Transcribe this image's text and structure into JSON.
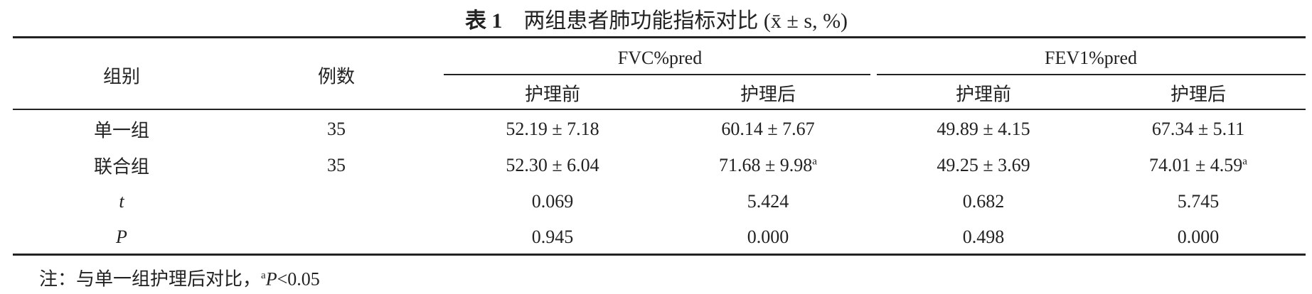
{
  "title": {
    "label": "表 1",
    "text": "两组患者肺功能指标对比 (x̄ ± s, %)"
  },
  "table": {
    "header": {
      "group": "组别",
      "count": "例数",
      "spans": [
        "FVC%pred",
        "FEV1%pred"
      ],
      "sub": [
        "护理前",
        "护理后",
        "护理前",
        "护理后"
      ]
    },
    "rows": [
      [
        {
          "text": "单一组"
        },
        {
          "text": "35"
        },
        {
          "text": "52.19 ± 7.18"
        },
        {
          "text": "60.14 ± 7.67"
        },
        {
          "text": "49.89 ± 4.15"
        },
        {
          "text": "67.34 ± 5.11"
        }
      ],
      [
        {
          "text": "联合组"
        },
        {
          "text": "35"
        },
        {
          "text": "52.30 ± 6.04"
        },
        {
          "text": "71.68 ± 9.98",
          "sup": "a"
        },
        {
          "text": "49.25 ± 3.69"
        },
        {
          "text": "74.01 ± 4.59",
          "sup": "a"
        }
      ],
      [
        {
          "text": "t",
          "italic": true
        },
        {
          "text": ""
        },
        {
          "text": "0.069"
        },
        {
          "text": "5.424"
        },
        {
          "text": "0.682"
        },
        {
          "text": "5.745"
        }
      ],
      [
        {
          "text": "P",
          "italic": true
        },
        {
          "text": ""
        },
        {
          "text": "0.945"
        },
        {
          "text": "0.000"
        },
        {
          "text": "0.498"
        },
        {
          "text": "0.000"
        }
      ]
    ]
  },
  "note": {
    "prefix": "注：与单一组护理后对比，",
    "sup": "a",
    "italic": "P",
    "suffix": "<0.05"
  }
}
